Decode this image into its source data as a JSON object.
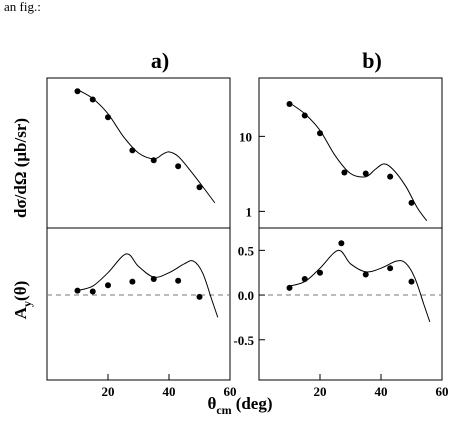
{
  "caption_fragment": "an fig.:",
  "chart_data": {
    "type": "scatter",
    "xlabel_main": "θ",
    "xlabel_sub": "cm",
    "xlabel_unit": "(deg)",
    "x_ticks": [
      "20",
      "40",
      "60"
    ],
    "xlim": [
      0,
      60
    ],
    "panels": [
      {
        "label": "a)",
        "cross_section": {
          "ylabel": "dσ/dΩ (μb/sr)",
          "scale": "log",
          "ylim": [
            0.6,
            60
          ],
          "y_ticks": [],
          "points": [
            [
              10,
              40
            ],
            [
              15,
              31
            ],
            [
              20,
              18
            ],
            [
              28,
              6.5
            ],
            [
              35,
              4.8
            ],
            [
              43,
              4.0
            ],
            [
              50,
              2.1
            ]
          ],
          "curve": [
            [
              10,
              42
            ],
            [
              15,
              32
            ],
            [
              20,
              20
            ],
            [
              25,
              10
            ],
            [
              30,
              6.0
            ],
            [
              35,
              5.0
            ],
            [
              38,
              5.8
            ],
            [
              40,
              6.2
            ],
            [
              43,
              5.4
            ],
            [
              47,
              3.5
            ],
            [
              52,
              1.9
            ],
            [
              55,
              1.3
            ]
          ]
        },
        "analyzing_power": {
          "ylabel": "A",
          "ylabel_sub": "y",
          "ylabel_arg": "(θ)",
          "ylim": [
            -0.95,
            0.75
          ],
          "y_ticks": [],
          "points": [
            [
              10,
              0.05
            ],
            [
              15,
              0.04
            ],
            [
              20,
              0.11
            ],
            [
              28,
              0.15
            ],
            [
              35,
              0.18
            ],
            [
              43,
              0.16
            ],
            [
              50,
              -0.02
            ]
          ],
          "curve": [
            [
              10,
              0.05
            ],
            [
              15,
              0.1
            ],
            [
              20,
              0.25
            ],
            [
              26,
              0.46
            ],
            [
              30,
              0.32
            ],
            [
              35,
              0.2
            ],
            [
              40,
              0.25
            ],
            [
              45,
              0.35
            ],
            [
              48,
              0.38
            ],
            [
              51,
              0.25
            ],
            [
              54,
              -0.05
            ],
            [
              56,
              -0.25
            ]
          ]
        }
      },
      {
        "label": "b)",
        "cross_section": {
          "scale": "log",
          "ylim": [
            0.6,
            60
          ],
          "y_ticks": [
            "10",
            "1"
          ],
          "y_tick_values": [
            10,
            1
          ],
          "points": [
            [
              10,
              27
            ],
            [
              15,
              19
            ],
            [
              20,
              11
            ],
            [
              28,
              3.3
            ],
            [
              35,
              3.2
            ],
            [
              43,
              2.9
            ],
            [
              50,
              1.3
            ]
          ],
          "curve": [
            [
              10,
              28
            ],
            [
              15,
              20
            ],
            [
              20,
              12
            ],
            [
              25,
              5.5
            ],
            [
              30,
              3.2
            ],
            [
              35,
              2.9
            ],
            [
              38,
              3.6
            ],
            [
              41,
              4.3
            ],
            [
              44,
              3.6
            ],
            [
              48,
              2.2
            ],
            [
              52,
              1.1
            ],
            [
              55,
              0.75
            ]
          ]
        },
        "analyzing_power": {
          "ylim": [
            -0.95,
            0.75
          ],
          "y_ticks": [
            "0.5",
            "0.0",
            "-0.5"
          ],
          "y_tick_values": [
            0.5,
            0.0,
            -0.5
          ],
          "points": [
            [
              10,
              0.08
            ],
            [
              15,
              0.18
            ],
            [
              20,
              0.25
            ],
            [
              27,
              0.58
            ],
            [
              35,
              0.23
            ],
            [
              43,
              0.3
            ],
            [
              50,
              0.15
            ]
          ],
          "curve": [
            [
              10,
              0.1
            ],
            [
              15,
              0.15
            ],
            [
              20,
              0.3
            ],
            [
              26,
              0.5
            ],
            [
              30,
              0.35
            ],
            [
              35,
              0.26
            ],
            [
              40,
              0.3
            ],
            [
              45,
              0.38
            ],
            [
              48,
              0.36
            ],
            [
              51,
              0.2
            ],
            [
              54,
              -0.1
            ],
            [
              56,
              -0.3
            ]
          ]
        }
      }
    ]
  }
}
